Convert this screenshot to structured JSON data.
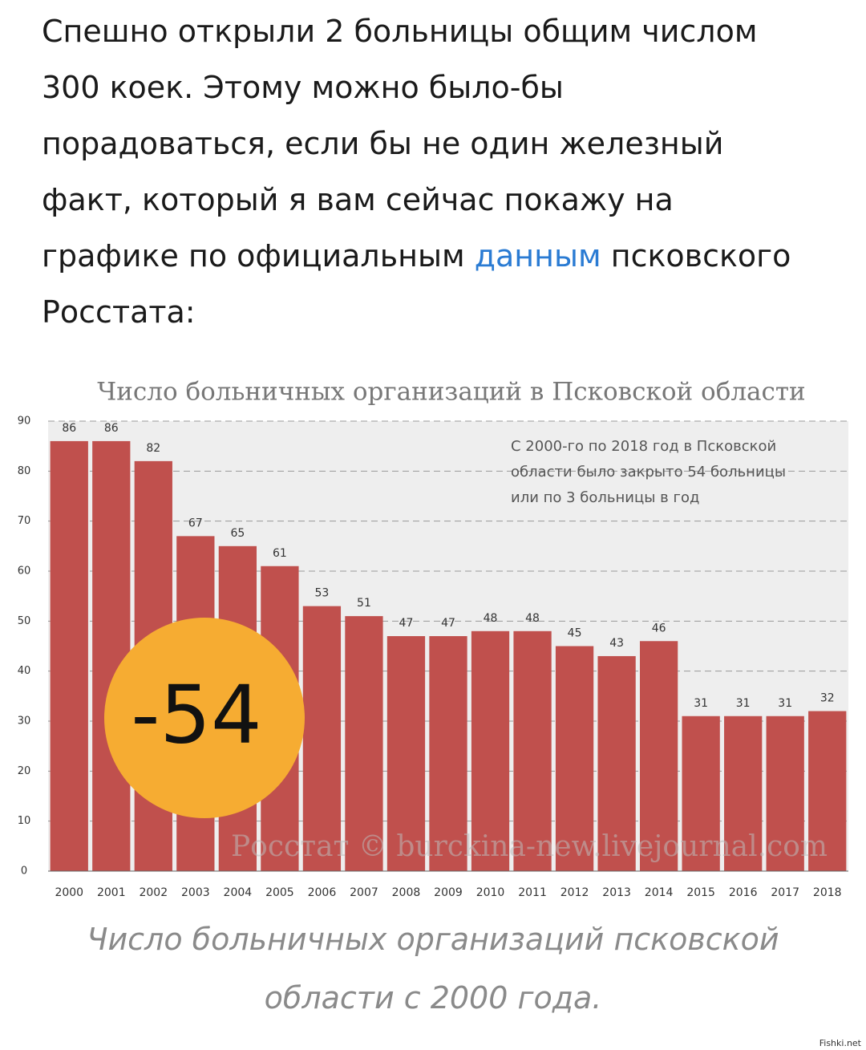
{
  "article": {
    "lines": [
      "Спешно открыли 2 больницы общим числом",
      "300 коек. Этому можно было-бы",
      "порадоваться, если бы не один железный",
      "факт, который я вам сейчас покажу на",
      "графике по официальным"
    ],
    "link": "данным",
    "after": [
      "псковского",
      "Росстата:"
    ]
  },
  "chart_data": {
    "type": "bar",
    "title": "Число больничных организаций в Псковской области",
    "categories": [
      "2000",
      "2001",
      "2002",
      "2003",
      "2004",
      "2005",
      "2006",
      "2007",
      "2008",
      "2009",
      "2010",
      "2011",
      "2012",
      "2013",
      "2014",
      "2015",
      "2016",
      "2017",
      "2018"
    ],
    "values": [
      86,
      86,
      82,
      67,
      65,
      61,
      53,
      51,
      47,
      47,
      48,
      48,
      45,
      43,
      46,
      31,
      31,
      31,
      32
    ],
    "color": "#c0504d",
    "ylim": [
      0,
      90
    ],
    "yticks": [
      0,
      10,
      20,
      30,
      40,
      50,
      60,
      70,
      80,
      90
    ],
    "grid": true,
    "annotation": [
      "С 2000-го по 2018 год в Псковской",
      "области было закрыто 54 больницы",
      "или по 3 больницы в год"
    ],
    "badge": "-54",
    "watermark": "Росстат © burckina-new.livejournal.com"
  },
  "caption": [
    "Число больничных организаций псковской",
    "области с 2000 года."
  ],
  "site": "Fishki.net"
}
